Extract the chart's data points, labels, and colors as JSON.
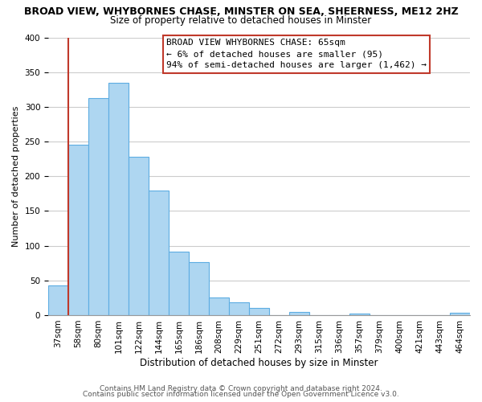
{
  "title": "BROAD VIEW, WHYBORNES CHASE, MINSTER ON SEA, SHEERNESS, ME12 2HZ",
  "subtitle": "Size of property relative to detached houses in Minster",
  "xlabel": "Distribution of detached houses by size in Minster",
  "ylabel": "Number of detached properties",
  "bar_labels": [
    "37sqm",
    "58sqm",
    "80sqm",
    "101sqm",
    "122sqm",
    "144sqm",
    "165sqm",
    "186sqm",
    "208sqm",
    "229sqm",
    "251sqm",
    "272sqm",
    "293sqm",
    "315sqm",
    "336sqm",
    "357sqm",
    "379sqm",
    "400sqm",
    "421sqm",
    "443sqm",
    "464sqm"
  ],
  "bar_heights": [
    43,
    246,
    313,
    335,
    228,
    180,
    91,
    76,
    25,
    18,
    10,
    0,
    5,
    0,
    0,
    2,
    0,
    0,
    0,
    0,
    3
  ],
  "bar_color": "#aed6f1",
  "bar_edge_color": "#5dade2",
  "vline_x_idx": 1,
  "vline_color": "#c0392b",
  "annotation_lines": [
    "BROAD VIEW WHYBORNES CHASE: 65sqm",
    "← 6% of detached houses are smaller (95)",
    "94% of semi-detached houses are larger (1,462) →"
  ],
  "annotation_box_color": "#ffffff",
  "annotation_box_edge": "#c0392b",
  "ylim": [
    0,
    400
  ],
  "yticks": [
    0,
    50,
    100,
    150,
    200,
    250,
    300,
    350,
    400
  ],
  "footnote1": "Contains HM Land Registry data © Crown copyright and database right 2024.",
  "footnote2": "Contains public sector information licensed under the Open Government Licence v3.0.",
  "background_color": "#ffffff",
  "grid_color": "#cccccc",
  "title_fontsize": 9,
  "subtitle_fontsize": 8.5,
  "xlabel_fontsize": 8.5,
  "ylabel_fontsize": 8,
  "tick_fontsize": 7.5,
  "annotation_fontsize": 8,
  "footnote_fontsize": 6.5
}
